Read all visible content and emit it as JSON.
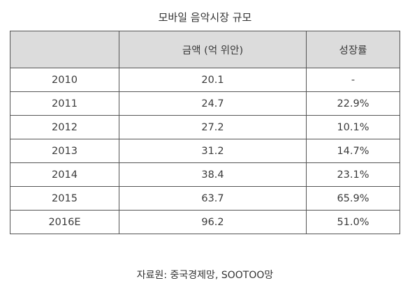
{
  "title": "모바일 음악시장 규모",
  "table": {
    "headers": [
      "",
      "금액 (억 위안)",
      "성장률"
    ],
    "rows": [
      {
        "year": "2010",
        "amount": "20.1",
        "growth": "-"
      },
      {
        "year": "2011",
        "amount": "24.7",
        "growth": "22.9%"
      },
      {
        "year": "2012",
        "amount": "27.2",
        "growth": "10.1%"
      },
      {
        "year": "2013",
        "amount": "31.2",
        "growth": "14.7%"
      },
      {
        "year": "2014",
        "amount": "38.4",
        "growth": "23.1%"
      },
      {
        "year": "2015",
        "amount": "63.7",
        "growth": "65.9%"
      },
      {
        "year": "2016E",
        "amount": "96.2",
        "growth": "51.0%"
      }
    ]
  },
  "chart_data": {
    "type": "table",
    "title": "모바일 음악시장 규모",
    "columns": [
      "",
      "금액 (억 위안)",
      "성장률"
    ],
    "categories": [
      "2010",
      "2011",
      "2012",
      "2013",
      "2014",
      "2015",
      "2016E"
    ],
    "series": [
      {
        "name": "금액 (억 위안)",
        "values": [
          20.1,
          24.7,
          27.2,
          31.2,
          38.4,
          63.7,
          96.2
        ]
      },
      {
        "name": "성장률",
        "values": [
          null,
          22.9,
          10.1,
          14.7,
          23.1,
          65.9,
          51.0
        ]
      }
    ]
  },
  "source": "자료원: 중국경제망, SOOTOO망"
}
